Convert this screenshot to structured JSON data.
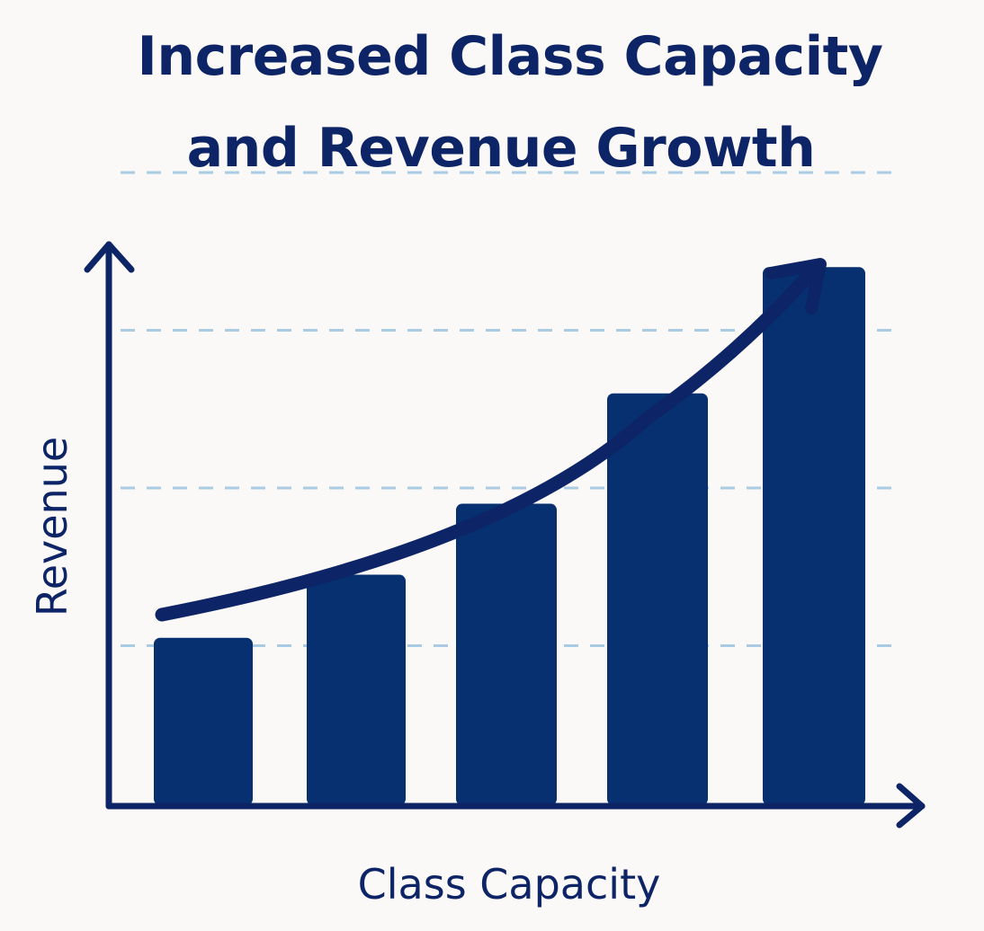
{
  "chart_data": {
    "type": "bar",
    "title_lines": [
      "Increased Class Capacity",
      "and Revenue Growth"
    ],
    "xlabel": "Class Capacity",
    "ylabel": "Revenue",
    "categories": [
      "",
      "",
      "",
      "",
      ""
    ],
    "values": [
      1.05,
      1.45,
      1.9,
      2.6,
      3.4
    ],
    "ylim": [
      0,
      4
    ],
    "grid": true,
    "trend_arrow": true,
    "colors": {
      "bar": "#06306f",
      "axis": "#0d2466",
      "grid": "#a9cbe3",
      "text": "#0d2466"
    }
  }
}
